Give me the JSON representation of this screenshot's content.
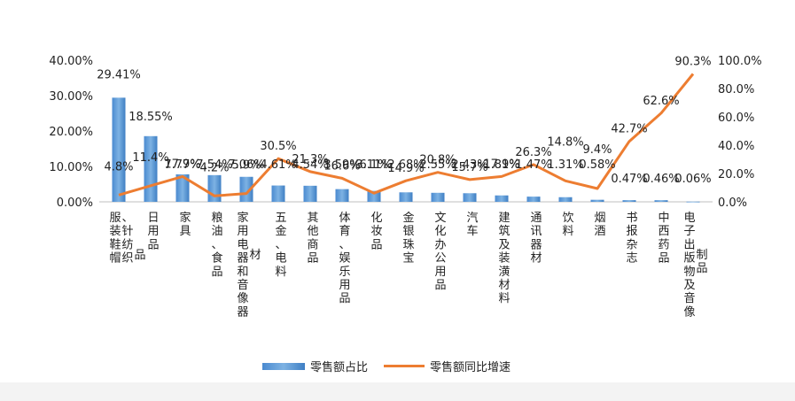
{
  "chart_data": {
    "type": "bar+line",
    "categories": [
      "服装鞋帽、针纺织品",
      "日用品",
      "家具",
      "粮油、食品",
      "家用电器和音像器材",
      "五金、电料",
      "其他商品",
      "体育、娱乐用品",
      "化妆品",
      "金银珠宝",
      "文化办公用品",
      "汽车",
      "建筑及装潢材料",
      "通讯器材",
      "饮料",
      "烟酒",
      "书报杂志",
      "中西药品",
      "电子出版物及音像制品"
    ],
    "category_lines": [
      [
        "服装鞋帽",
        "、针纺织",
        "品"
      ],
      [
        "日用品"
      ],
      [
        "家具"
      ],
      [
        "粮油、食品"
      ],
      [
        "家用电器和音像器",
        "材"
      ],
      [
        "五金、电料"
      ],
      [
        "其他商品"
      ],
      [
        "体育、娱乐用品"
      ],
      [
        "化妆品"
      ],
      [
        "金银珠宝"
      ],
      [
        "文化办公用品"
      ],
      [
        "汽车"
      ],
      [
        "建筑及装潢材料"
      ],
      [
        "通讯器材"
      ],
      [
        "饮料"
      ],
      [
        "烟酒"
      ],
      [
        "书报杂志"
      ],
      [
        "中西药品"
      ],
      [
        "电子出版物及音像",
        "制品"
      ]
    ],
    "series": [
      {
        "name": "零售额占比",
        "type": "bar",
        "axis": "left",
        "values": [
          29.41,
          18.55,
          7.77,
          7.54,
          7.06,
          4.61,
          4.54,
          3.59,
          3.11,
          2.68,
          2.55,
          2.43,
          1.81,
          1.47,
          1.31,
          0.58,
          0.47,
          0.46,
          0.06
        ],
        "labels": [
          "29.41%",
          "18.55%",
          "7.77%",
          "7.54%",
          "7.06%",
          "4.61%",
          "4.54%",
          "3.59%",
          "3.11%",
          "2.68%",
          "2.55%",
          "2.43%",
          "1.81%",
          "1.47%",
          "1.31%",
          "0.58%",
          "0.47%",
          "0.46%",
          "0.06%"
        ]
      },
      {
        "name": "零售额同比增速",
        "type": "line",
        "axis": "right",
        "values": [
          4.8,
          11.4,
          17.9,
          4.2,
          5.9,
          30.5,
          21.3,
          16.6,
          6.1,
          14.9,
          20.8,
          15.7,
          17.9,
          26.3,
          14.8,
          9.4,
          42.7,
          62.6,
          90.3
        ],
        "labels": [
          "4.8%",
          "11.4%",
          "17.9%",
          "4.2%",
          "5.9%",
          "30.5%",
          "21.3%",
          "16.6%",
          "6.1%",
          "14.9%",
          "20.8%",
          "15.7%",
          "17.9%",
          "26.3%",
          "14.8%",
          "9.4%",
          "42.7%",
          "62.6%",
          "90.3%"
        ]
      }
    ],
    "y_left": {
      "ylim": [
        0,
        40
      ],
      "ticks": [
        "0.00%",
        "10.00%",
        "20.00%",
        "30.00%",
        "40.00%"
      ]
    },
    "y_right": {
      "ylim": [
        0,
        100
      ],
      "ticks": [
        "0.0%",
        "20.0%",
        "40.0%",
        "60.0%",
        "80.0%",
        "100.0%"
      ]
    },
    "colors": {
      "bar": "#5b9bd5",
      "bar_dark": "#2e75b6",
      "line": "#ed7d31"
    },
    "legend_position": "bottom",
    "grid": false
  }
}
